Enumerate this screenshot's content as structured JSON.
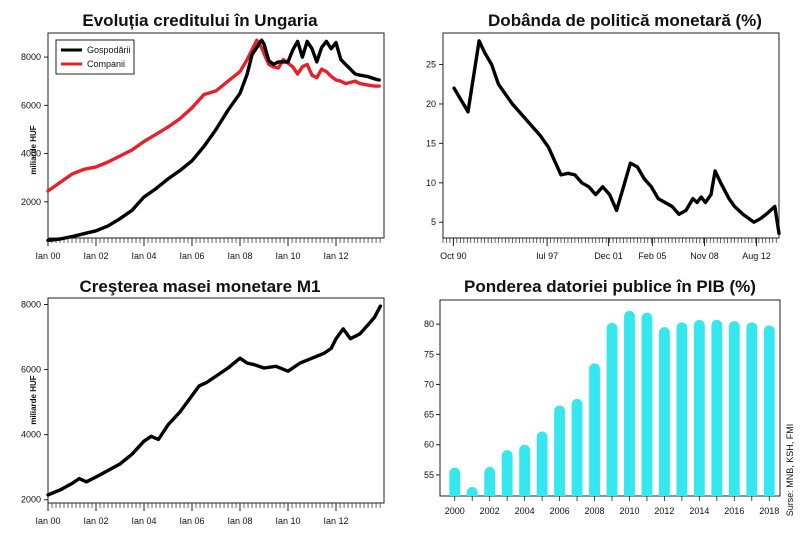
{
  "source": "Surse: MNB, KSH, FMI",
  "chart_data": [
    {
      "type": "line",
      "title": "Evoluția creditului în Ungaria",
      "ylabel": "miliarde HUF",
      "x_ticks": [
        "Ian 00",
        "Ian 02",
        "Ian 04",
        "Ian 06",
        "Ian 08",
        "Ian 10",
        "Ian 12"
      ],
      "xlim": [
        2000.0,
        2014.0
      ],
      "ylim": [
        500,
        9000
      ],
      "y_ticks": [
        2000,
        4000,
        6000,
        8000
      ],
      "legend": "top-left",
      "series": [
        {
          "name": "Gospodării",
          "color": "#000000",
          "x": [
            2000.0,
            2000.5,
            2001.0,
            2001.5,
            2002.0,
            2002.5,
            2003.0,
            2003.5,
            2004.0,
            2004.5,
            2005.0,
            2005.5,
            2006.0,
            2006.5,
            2007.0,
            2007.5,
            2008.0,
            2008.3,
            2008.5,
            2008.7,
            2008.9,
            2009.0,
            2009.2,
            2009.4,
            2009.6,
            2009.8,
            2010.0,
            2010.2,
            2010.4,
            2010.6,
            2010.8,
            2011.0,
            2011.2,
            2011.4,
            2011.6,
            2011.8,
            2012.0,
            2012.2,
            2012.4,
            2012.6,
            2012.8,
            2013.0,
            2013.3,
            2013.6,
            2013.8
          ],
          "values": [
            400,
            460,
            560,
            680,
            800,
            1000,
            1300,
            1650,
            2200,
            2550,
            2950,
            3300,
            3700,
            4300,
            5000,
            5800,
            6500,
            7300,
            8100,
            8400,
            8700,
            8550,
            7850,
            7700,
            7800,
            7800,
            7800,
            8300,
            8650,
            8000,
            8650,
            8350,
            7800,
            8400,
            8650,
            8350,
            8600,
            7900,
            7700,
            7500,
            7300,
            7250,
            7200,
            7100,
            7050
          ]
        },
        {
          "name": "Companii",
          "color": "#e8202a",
          "x": [
            2000.0,
            2000.5,
            2001.0,
            2001.5,
            2002.0,
            2002.5,
            2003.0,
            2003.5,
            2004.0,
            2004.5,
            2005.0,
            2005.5,
            2006.0,
            2006.5,
            2007.0,
            2007.5,
            2008.0,
            2008.3,
            2008.5,
            2008.7,
            2008.9,
            2009.0,
            2009.2,
            2009.4,
            2009.6,
            2009.8,
            2010.0,
            2010.2,
            2010.4,
            2010.6,
            2010.8,
            2011.0,
            2011.2,
            2011.4,
            2011.6,
            2011.8,
            2012.0,
            2012.2,
            2012.4,
            2012.6,
            2012.8,
            2013.0,
            2013.3,
            2013.6,
            2013.8
          ],
          "values": [
            2450,
            2800,
            3150,
            3350,
            3450,
            3650,
            3900,
            4150,
            4500,
            4800,
            5100,
            5450,
            5900,
            6450,
            6600,
            7000,
            7400,
            7900,
            8300,
            8700,
            8400,
            8150,
            7700,
            7600,
            7550,
            7900,
            7750,
            7600,
            7300,
            7600,
            7700,
            7250,
            7150,
            7500,
            7400,
            7200,
            7050,
            7000,
            6900,
            6950,
            7000,
            6900,
            6850,
            6800,
            6800
          ]
        }
      ]
    },
    {
      "type": "line",
      "title": "Dobânda de politică monetară (%)",
      "x_ticks": [
        "Oct 90",
        "Iul 97",
        "Dec 01",
        "Feb 05",
        "Nov 08",
        "Aug 12"
      ],
      "xlim": [
        1990.0,
        2014.2
      ],
      "ylim": [
        3,
        29
      ],
      "y_ticks": [
        5,
        10,
        15,
        20,
        25
      ],
      "series": [
        {
          "name": "",
          "color": "#000000",
          "x": [
            1990.8,
            1991.8,
            1992.6,
            1993.0,
            1993.5,
            1994.0,
            1995.0,
            1996.0,
            1996.5,
            1997.0,
            1997.6,
            1998.5,
            1999.0,
            1999.5,
            2000.0,
            2000.5,
            2001.0,
            2001.5,
            2002.0,
            2002.5,
            2003.0,
            2003.5,
            2004.0,
            2004.5,
            2005.0,
            2005.5,
            2006.0,
            2006.5,
            2007.0,
            2007.5,
            2008.0,
            2008.3,
            2008.6,
            2008.9,
            2009.3,
            2009.6,
            2010.0,
            2010.6,
            2011.0,
            2011.6,
            2012.0,
            2012.4,
            2012.9,
            2013.4,
            2013.9,
            2014.2
          ],
          "values": [
            22,
            19,
            28,
            26.5,
            25,
            22.5,
            20,
            18,
            17,
            16,
            14.5,
            11,
            11.2,
            11,
            10,
            9.5,
            8.5,
            9.5,
            8.5,
            6.5,
            9.5,
            12.5,
            12,
            10.5,
            9.5,
            8,
            7.5,
            7,
            6,
            6.5,
            8,
            7.5,
            8.2,
            7.5,
            8.5,
            11.5,
            10,
            8,
            7,
            6,
            5.5,
            5,
            5.5,
            6.2,
            7,
            3.6
          ]
        }
      ]
    },
    {
      "type": "line",
      "title": "Creşterea masei monetare M1",
      "ylabel": "miliarde HUF",
      "x_ticks": [
        "Ian 00",
        "Ian 02",
        "Ian 04",
        "Ian 06",
        "Ian 08",
        "Ian 10",
        "Ian 12"
      ],
      "xlim": [
        2000.0,
        2014.0
      ],
      "ylim": [
        1900,
        8200
      ],
      "y_ticks": [
        2000,
        4000,
        6000,
        8000
      ],
      "series": [
        {
          "name": "M1",
          "color": "#000000",
          "x": [
            2000.0,
            2000.5,
            2001.0,
            2001.3,
            2001.6,
            2002.0,
            2002.5,
            2003.0,
            2003.5,
            2004.0,
            2004.3,
            2004.6,
            2005.0,
            2005.5,
            2006.0,
            2006.3,
            2006.6,
            2007.0,
            2007.5,
            2008.0,
            2008.3,
            2008.6,
            2009.0,
            2009.5,
            2010.0,
            2010.5,
            2011.0,
            2011.5,
            2011.8,
            2012.0,
            2012.3,
            2012.6,
            2013.0,
            2013.3,
            2013.6,
            2013.85
          ],
          "values": [
            2150,
            2300,
            2500,
            2650,
            2550,
            2700,
            2900,
            3100,
            3400,
            3800,
            3950,
            3850,
            4300,
            4700,
            5200,
            5500,
            5600,
            5800,
            6050,
            6350,
            6200,
            6150,
            6050,
            6100,
            5950,
            6200,
            6350,
            6500,
            6650,
            6950,
            7250,
            6950,
            7100,
            7350,
            7600,
            7950
          ]
        }
      ]
    },
    {
      "type": "bar",
      "title": "Ponderea datoriei publice în PIB (%)",
      "categories": [
        "2000",
        "2001",
        "2002",
        "2003",
        "2004",
        "2005",
        "2006",
        "2007",
        "2008",
        "2009",
        "2010",
        "2011",
        "2012",
        "2013",
        "2014",
        "2015",
        "2016",
        "2017",
        "2018"
      ],
      "values": [
        56.2,
        53.0,
        56.3,
        59.1,
        60.0,
        62.2,
        66.5,
        67.6,
        73.5,
        80.2,
        82.2,
        81.9,
        79.5,
        80.3,
        80.7,
        80.7,
        80.5,
        80.3,
        79.8
      ],
      "x_ticks": [
        "2000",
        "2002",
        "2004",
        "2006",
        "2008",
        "2010",
        "2012",
        "2014",
        "2016",
        "2018"
      ],
      "ylim": [
        51.5,
        84
      ],
      "y_ticks": [
        55,
        60,
        65,
        70,
        75,
        80
      ],
      "color": "#35e8ef"
    }
  ]
}
